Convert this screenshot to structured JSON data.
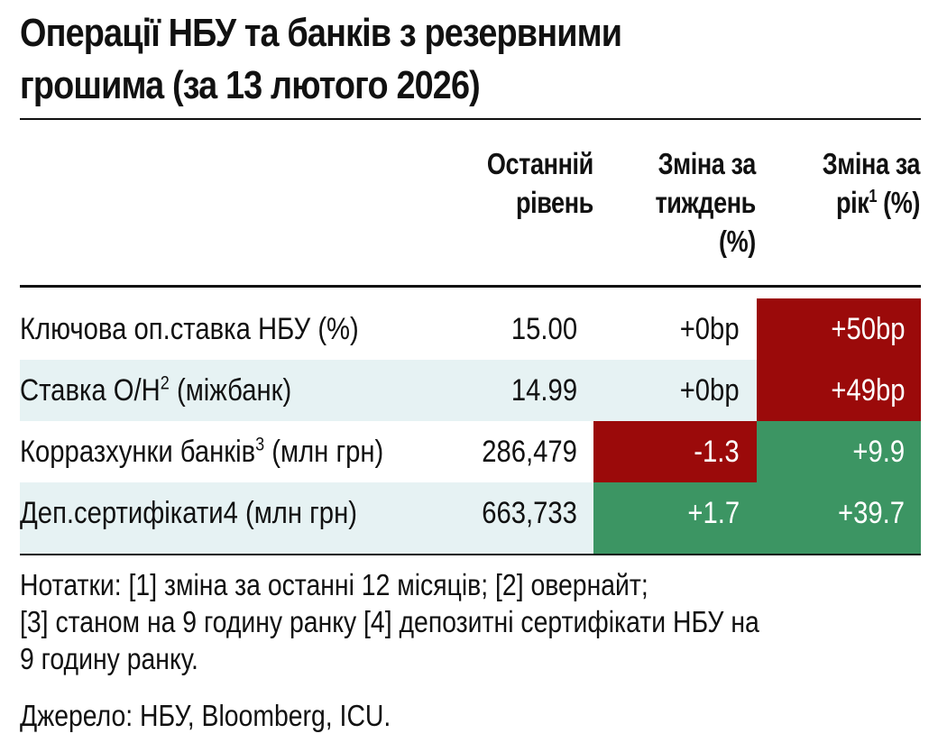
{
  "title": {
    "line1": "Операції НБУ та банків з резервними",
    "line2": "грошима (за 13 лютого 2026)"
  },
  "columns": {
    "last": {
      "line1": "Останній",
      "line2": "рівень"
    },
    "week": {
      "line1": "Зміна за",
      "line2": "тиждень",
      "line3": "(%)"
    },
    "year": {
      "line1": "Зміна за",
      "line2_text": "рік",
      "line2_sup": "1",
      "line2_tail": " (%)"
    }
  },
  "rows": [
    {
      "label": "Ключова оп.ставка НБУ (%)",
      "sup": "",
      "label_tail": "",
      "last": "15.00",
      "week": "+0bp",
      "year": "+50bp",
      "week_color": "none",
      "year_color": "red"
    },
    {
      "label": "Ставка О/Н",
      "sup": "2",
      "label_tail": " (міжбанк)",
      "last": "14.99",
      "week": "+0bp",
      "year": "+49bp",
      "week_color": "none",
      "year_color": "red"
    },
    {
      "label": "Корразхунки банків",
      "sup": "3",
      "label_tail": " (млн грн)",
      "last": "286,479",
      "week": "-1.3",
      "year": "+9.9",
      "week_color": "red",
      "year_color": "green"
    },
    {
      "label": "Деп.сертифікати4 (млн грн)",
      "sup": "",
      "label_tail": "",
      "last": "663,733",
      "week": "+1.7",
      "year": "+39.7",
      "week_color": "green",
      "year_color": "green"
    }
  ],
  "notes": {
    "line1": "Нотатки: [1] зміна за останні 12 місяців; [2] овернайт;",
    "line2": "[3] станом на 9 годину ранку [4] депозитні сертифікати НБУ на",
    "line3": "9 годину ранку."
  },
  "source": "Джерело: НБУ, Bloomberg, ICU.",
  "colors": {
    "negative_bg": "#9b0a0a",
    "positive_bg": "#3c9563",
    "row_shade": "#e6f2f3"
  }
}
